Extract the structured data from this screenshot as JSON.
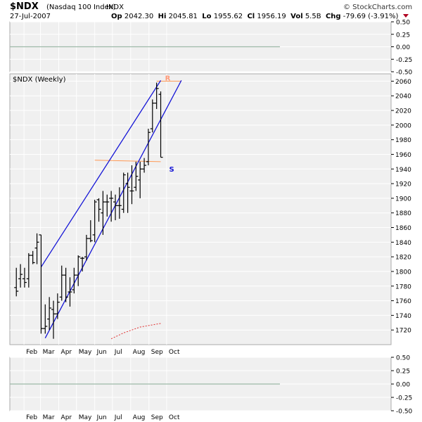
{
  "header": {
    "symbol": "$NDX",
    "name": "(Nasdaq 100 Index)",
    "exchange": "INDX",
    "date": "27-Jul-2007",
    "open_label": "Op",
    "open": "2042.30",
    "high_label": "Hi",
    "high": "2045.81",
    "low_label": "Lo",
    "low": "1955.62",
    "close_label": "Cl",
    "close": "1956.19",
    "volume_label": "Vol",
    "volume": "5.5B",
    "change_label": "Chg",
    "change": "-79.69 (-3.91%)",
    "change_arrow_icon": "down-triangle-icon",
    "change_color": "#b00020",
    "brand": "© StockCharts.com"
  },
  "top_panel": {
    "ticks": [
      "0.50",
      "0.25",
      "0.00",
      "-0.25",
      "-0.50"
    ],
    "ylim": [
      -0.5,
      0.5
    ],
    "zero_line_color": "#9db9a8"
  },
  "chart_data": {
    "type": "ohlc",
    "title": "$NDX (Weekly)",
    "ylim": [
      1700,
      2070
    ],
    "yticks": [
      1720,
      1740,
      1760,
      1780,
      1800,
      1820,
      1840,
      1860,
      1880,
      1900,
      1920,
      1940,
      1960,
      1980,
      2000,
      2020,
      2040,
      2060
    ],
    "month_labels": [
      "Feb",
      "Mar",
      "Apr",
      "May",
      "Jun",
      "Jul",
      "Aug",
      "Sep",
      "Oct"
    ],
    "bar_color": "#000000",
    "bars": [
      {
        "week": "2007-01-19",
        "open": 1778,
        "high": 1805,
        "low": 1766,
        "close": 1773
      },
      {
        "week": "2007-01-26",
        "open": 1790,
        "high": 1810,
        "low": 1778,
        "close": 1796
      },
      {
        "week": "2007-02-02",
        "open": 1790,
        "high": 1805,
        "low": 1778,
        "close": 1785
      },
      {
        "week": "2007-02-09",
        "open": 1790,
        "high": 1825,
        "low": 1778,
        "close": 1822
      },
      {
        "week": "2007-02-16",
        "open": 1822,
        "high": 1828,
        "low": 1810,
        "close": 1812
      },
      {
        "week": "2007-02-23",
        "open": 1832,
        "high": 1852,
        "low": 1810,
        "close": 1840
      },
      {
        "week": "2007-03-02",
        "open": 1850,
        "high": 1850,
        "low": 1715,
        "close": 1722
      },
      {
        "week": "2007-03-09",
        "open": 1722,
        "high": 1755,
        "low": 1715,
        "close": 1725
      },
      {
        "week": "2007-03-16",
        "open": 1735,
        "high": 1765,
        "low": 1720,
        "close": 1750
      },
      {
        "week": "2007-03-23",
        "open": 1748,
        "high": 1760,
        "low": 1708,
        "close": 1742
      },
      {
        "week": "2007-03-30",
        "open": 1742,
        "high": 1770,
        "low": 1735,
        "close": 1758
      },
      {
        "week": "2007-04-06",
        "open": 1765,
        "high": 1808,
        "low": 1760,
        "close": 1795
      },
      {
        "week": "2007-04-13",
        "open": 1795,
        "high": 1805,
        "low": 1758,
        "close": 1765
      },
      {
        "week": "2007-04-20",
        "open": 1772,
        "high": 1792,
        "low": 1752,
        "close": 1772
      },
      {
        "week": "2007-04-27",
        "open": 1775,
        "high": 1805,
        "low": 1770,
        "close": 1795
      },
      {
        "week": "2007-05-04",
        "open": 1795,
        "high": 1822,
        "low": 1780,
        "close": 1820
      },
      {
        "week": "2007-05-11",
        "open": 1818,
        "high": 1820,
        "low": 1800,
        "close": 1818
      },
      {
        "week": "2007-05-18",
        "open": 1820,
        "high": 1850,
        "low": 1815,
        "close": 1845
      },
      {
        "week": "2007-05-25",
        "open": 1845,
        "high": 1870,
        "low": 1840,
        "close": 1842
      },
      {
        "week": "2007-06-01",
        "open": 1850,
        "high": 1898,
        "low": 1840,
        "close": 1895
      },
      {
        "week": "2007-06-08",
        "open": 1898,
        "high": 1900,
        "low": 1868,
        "close": 1885
      },
      {
        "week": "2007-06-15",
        "open": 1880,
        "high": 1910,
        "low": 1850,
        "close": 1895
      },
      {
        "week": "2007-06-22",
        "open": 1895,
        "high": 1905,
        "low": 1875,
        "close": 1895
      },
      {
        "week": "2007-06-29",
        "open": 1900,
        "high": 1910,
        "low": 1868,
        "close": 1900
      },
      {
        "week": "2007-07-06",
        "open": 1895,
        "high": 1905,
        "low": 1870,
        "close": 1890
      },
      {
        "week": "2007-07-13",
        "open": 1890,
        "high": 1915,
        "low": 1872,
        "close": 1890
      },
      {
        "week": "2007-07-20",
        "open": 1885,
        "high": 1935,
        "low": 1880,
        "close": 1932
      },
      {
        "week": "2007-07-27",
        "open": 1920,
        "high": 1935,
        "low": 1880,
        "close": 1915
      },
      {
        "week": "2007-08-03",
        "open": 1910,
        "high": 1945,
        "low": 1892,
        "close": 1910
      },
      {
        "week": "2007-08-10",
        "open": 1915,
        "high": 1950,
        "low": 1910,
        "close": 1930
      },
      {
        "week": "2007-08-17",
        "open": 1925,
        "high": 1950,
        "low": 1900,
        "close": 1940
      },
      {
        "week": "2007-08-24",
        "open": 1940,
        "high": 1955,
        "low": 1935,
        "close": 1945
      },
      {
        "week": "2007-08-31",
        "open": 1950,
        "high": 1995,
        "low": 1945,
        "close": 1990
      },
      {
        "week": "2007-09-07",
        "open": 1995,
        "high": 2035,
        "low": 1990,
        "close": 2030
      },
      {
        "week": "2007-09-14",
        "open": 2030,
        "high": 2058,
        "low": 2022,
        "close": 2050
      },
      {
        "week": "2007-09-21",
        "open": 2042,
        "high": 2046,
        "low": 1956,
        "close": 1956
      }
    ],
    "channel": {
      "color": "#1515d6",
      "upper": [
        [
          "2007-03-02",
          1806
        ],
        [
          "2007-09-21",
          2061
        ]
      ],
      "lower": [
        [
          "2007-03-09",
          1709
        ],
        [
          "2007-10-26",
          2061
        ]
      ]
    },
    "support_line": {
      "color": "#ff9955",
      "from": [
        "2007-06-01",
        1952
      ],
      "to": [
        "2007-09-21",
        1950
      ]
    },
    "resistance_line": {
      "color": "#ff9955",
      "from": [
        "2007-09-14",
        2060
      ],
      "to": [
        "2007-10-26",
        2060
      ]
    },
    "moving_average": {
      "color": "#e03030",
      "style": "dotted",
      "points": [
        [
          "2007-06-29",
          1708
        ],
        [
          "2007-07-20",
          1716
        ],
        [
          "2007-08-17",
          1724
        ],
        [
          "2007-09-21",
          1729
        ]
      ]
    },
    "annotations": [
      {
        "text": "R",
        "date": "2007-09-14",
        "value": 2061,
        "color": "#ff9977"
      },
      {
        "text": "S",
        "date": "2007-09-21",
        "value": 1942,
        "color": "#1515d6"
      }
    ]
  },
  "bottom_panel": {
    "ticks": [
      "0.50",
      "0.25",
      "0.00",
      "-0.25",
      "-0.50"
    ],
    "ylim": [
      -0.5,
      0.5
    ],
    "zero_line_color": "#9db9a8"
  },
  "colors": {
    "panel_bg": "#f0f0f0",
    "grid": "#ffffff",
    "border": "#aaaaaa"
  }
}
